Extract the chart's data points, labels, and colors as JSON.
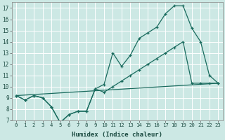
{
  "xlabel": "Humidex (Indice chaleur)",
  "ylabel": "",
  "xlim": [
    -0.5,
    23.5
  ],
  "ylim": [
    7,
    17.5
  ],
  "yticks": [
    7,
    8,
    9,
    10,
    11,
    12,
    13,
    14,
    15,
    16,
    17
  ],
  "xticks": [
    0,
    1,
    2,
    3,
    4,
    5,
    6,
    7,
    8,
    9,
    10,
    11,
    12,
    13,
    14,
    15,
    16,
    17,
    18,
    19,
    20,
    21,
    22,
    23
  ],
  "background_color": "#cce8e4",
  "grid_color": "#ffffff",
  "line_color": "#1a6b5e",
  "line1_x": [
    0,
    1,
    2,
    3,
    4,
    5,
    6,
    7,
    8,
    9,
    10,
    11,
    12,
    13,
    14,
    15,
    16,
    17,
    18,
    19,
    20,
    21,
    22,
    23
  ],
  "line1_y": [
    9.2,
    8.8,
    9.2,
    9.0,
    8.2,
    6.8,
    7.5,
    7.8,
    7.8,
    9.8,
    10.2,
    13.0,
    11.8,
    12.8,
    14.3,
    14.8,
    15.3,
    16.5,
    17.2,
    17.2,
    15.2,
    14.0,
    11.0,
    10.3
  ],
  "line2_x": [
    0,
    1,
    2,
    3,
    4,
    5,
    6,
    7,
    8,
    9,
    10,
    11,
    12,
    13,
    14,
    15,
    16,
    17,
    18,
    19,
    20,
    21,
    22,
    23
  ],
  "line2_y": [
    9.2,
    8.8,
    9.2,
    9.0,
    8.2,
    6.8,
    7.5,
    7.8,
    7.8,
    9.8,
    9.5,
    10.0,
    10.5,
    11.0,
    11.5,
    12.0,
    12.5,
    13.0,
    13.5,
    14.0,
    10.3,
    10.3,
    10.3,
    10.3
  ],
  "line3_x": [
    0,
    23
  ],
  "line3_y": [
    9.2,
    10.3
  ]
}
